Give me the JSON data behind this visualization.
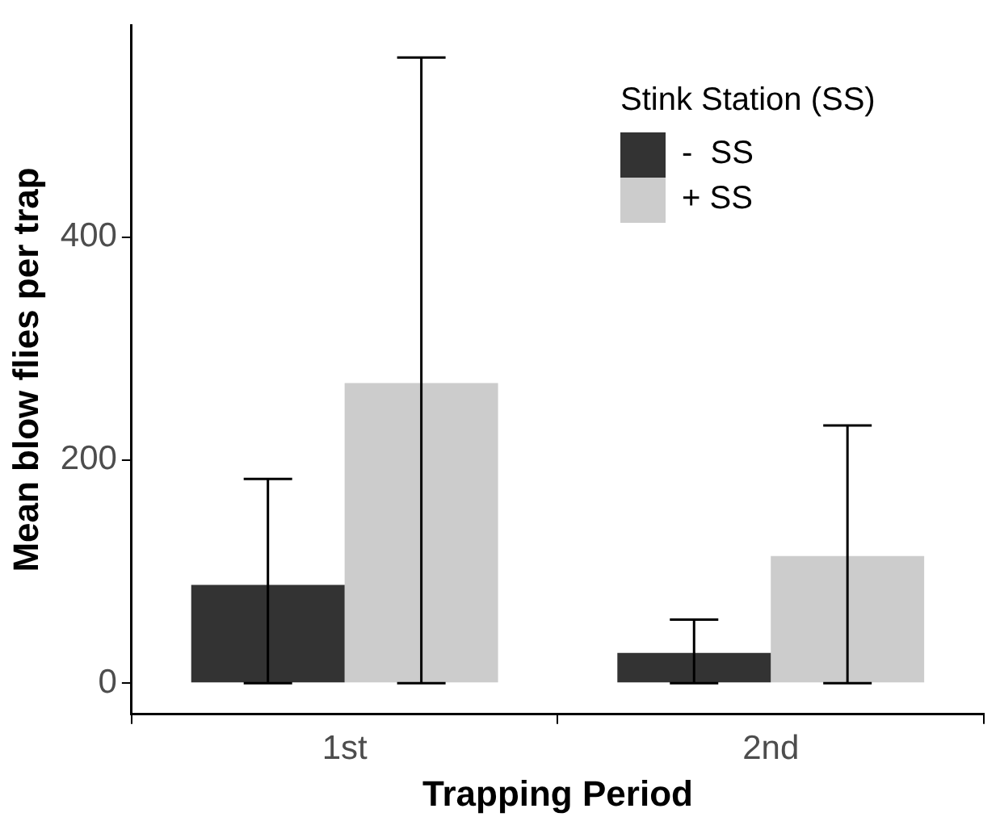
{
  "chart_data": {
    "type": "bar",
    "xlabel": "Trapping Period",
    "ylabel": "Mean blow flies per trap",
    "legend_title": "Stink Station (SS)",
    "legend": "top right",
    "grid": false,
    "categories": [
      "1st",
      "2nd"
    ],
    "series": [
      {
        "name": "-  SS",
        "color": "#333333",
        "values": [
          88,
          27
        ],
        "errors": [
          [
            0,
            183
          ],
          [
            0,
            57
          ]
        ]
      },
      {
        "name": "+ SS",
        "color": "#cccccc",
        "values": [
          269,
          114
        ],
        "errors": [
          [
            0,
            561
          ],
          [
            0,
            231
          ]
        ]
      }
    ],
    "ylim": [
      -28,
      590
    ],
    "yticks": [
      0,
      200,
      400
    ]
  }
}
